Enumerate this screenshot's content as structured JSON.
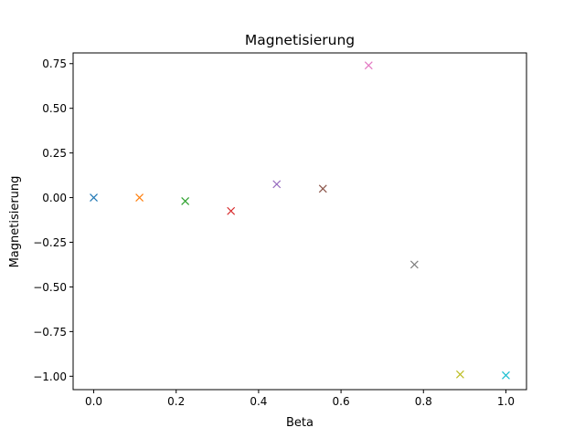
{
  "chart_data": {
    "type": "scatter",
    "title": "Magnetisierung",
    "xlabel": "Beta",
    "ylabel": "Magnetisierung",
    "xlim": [
      -0.05,
      1.05
    ],
    "ylim": [
      -1.075,
      0.81
    ],
    "xticks": [
      0.0,
      0.2,
      0.4,
      0.6,
      0.8,
      1.0
    ],
    "xtick_labels": [
      "0.0",
      "0.2",
      "0.4",
      "0.6",
      "0.8",
      "1.0"
    ],
    "yticks": [
      0.75,
      0.5,
      0.25,
      0.0,
      -0.25,
      -0.5,
      -0.75,
      -1.0
    ],
    "ytick_labels": [
      "0.75",
      "0.50",
      "0.25",
      "0.00",
      "−0.25",
      "−0.50",
      "−0.75",
      "−1.00"
    ],
    "marker": "x",
    "grid": false,
    "points": [
      {
        "x": 0.0,
        "y": 0.0,
        "color": "#1f77b4"
      },
      {
        "x": 0.111,
        "y": 0.0,
        "color": "#ff7f0e"
      },
      {
        "x": 0.222,
        "y": -0.02,
        "color": "#2ca02c"
      },
      {
        "x": 0.333,
        "y": -0.075,
        "color": "#d62728"
      },
      {
        "x": 0.444,
        "y": 0.075,
        "color": "#9467bd"
      },
      {
        "x": 0.556,
        "y": 0.05,
        "color": "#8c564b"
      },
      {
        "x": 0.667,
        "y": 0.74,
        "color": "#e377c2"
      },
      {
        "x": 0.778,
        "y": -0.375,
        "color": "#7f7f7f"
      },
      {
        "x": 0.889,
        "y": -0.99,
        "color": "#bcbd22"
      },
      {
        "x": 1.0,
        "y": -0.995,
        "color": "#17becf"
      }
    ]
  }
}
